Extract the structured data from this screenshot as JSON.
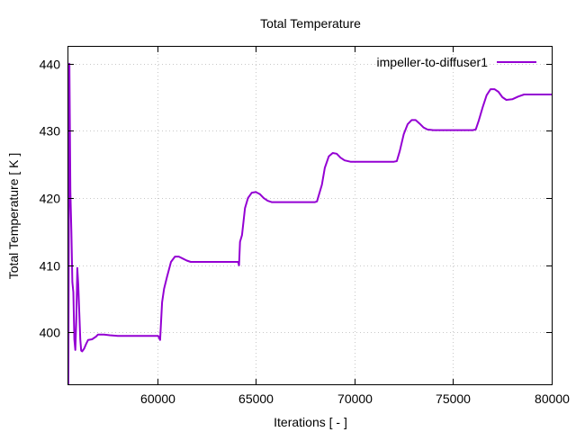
{
  "chart_data": {
    "type": "line",
    "title": "Total Temperature",
    "xlabel": "Iterations [ - ]",
    "ylabel": "Total Temperature [ K ]",
    "xlim": [
      55500,
      80000
    ],
    "ylim": [
      392.3,
      442.5
    ],
    "xticks": [
      60000,
      65000,
      70000,
      75000,
      80000
    ],
    "yticks": [
      400,
      410,
      420,
      430,
      440
    ],
    "grid": true,
    "legend_position": "top-right",
    "series": [
      {
        "name": "impeller-to-diffuser1",
        "color": "#9400d3",
        "points": [
          [
            55500,
            392.3
          ],
          [
            55550,
            440.0
          ],
          [
            55600,
            421.0
          ],
          [
            55650,
            415.0
          ],
          [
            55700,
            407.5
          ],
          [
            55750,
            406.0
          ],
          [
            55800,
            399.0
          ],
          [
            55850,
            397.4
          ],
          [
            55900,
            402.0
          ],
          [
            55950,
            409.6
          ],
          [
            56000,
            407.0
          ],
          [
            56050,
            403.0
          ],
          [
            56100,
            399.0
          ],
          [
            56150,
            397.3
          ],
          [
            56200,
            397.2
          ],
          [
            56300,
            397.6
          ],
          [
            56400,
            398.3
          ],
          [
            56500,
            398.9
          ],
          [
            56700,
            399.0
          ],
          [
            56900,
            399.4
          ],
          [
            57000,
            399.7
          ],
          [
            57300,
            399.7
          ],
          [
            57600,
            399.6
          ],
          [
            58000,
            399.5
          ],
          [
            58500,
            399.5
          ],
          [
            59000,
            399.5
          ],
          [
            59500,
            399.5
          ],
          [
            60000,
            399.5
          ],
          [
            60050,
            399.5
          ],
          [
            60150,
            398.9
          ],
          [
            60250,
            404.5
          ],
          [
            60350,
            406.5
          ],
          [
            60500,
            408.3
          ],
          [
            60700,
            410.5
          ],
          [
            60900,
            411.3
          ],
          [
            61100,
            411.3
          ],
          [
            61300,
            411.0
          ],
          [
            61500,
            410.7
          ],
          [
            61700,
            410.5
          ],
          [
            62000,
            410.5
          ],
          [
            62500,
            410.5
          ],
          [
            63000,
            410.5
          ],
          [
            63500,
            410.5
          ],
          [
            64000,
            410.5
          ],
          [
            64100,
            410.5
          ],
          [
            64150,
            410.0
          ],
          [
            64200,
            413.5
          ],
          [
            64300,
            414.5
          ],
          [
            64450,
            418.5
          ],
          [
            64600,
            420.0
          ],
          [
            64800,
            420.8
          ],
          [
            65000,
            420.9
          ],
          [
            65200,
            420.6
          ],
          [
            65400,
            420.0
          ],
          [
            65600,
            419.6
          ],
          [
            65800,
            419.4
          ],
          [
            66000,
            419.4
          ],
          [
            66500,
            419.4
          ],
          [
            67000,
            419.4
          ],
          [
            67500,
            419.4
          ],
          [
            68000,
            419.4
          ],
          [
            68100,
            419.5
          ],
          [
            68200,
            420.5
          ],
          [
            68350,
            422.0
          ],
          [
            68500,
            424.5
          ],
          [
            68700,
            426.2
          ],
          [
            68900,
            426.7
          ],
          [
            69100,
            426.6
          ],
          [
            69300,
            426.0
          ],
          [
            69500,
            425.6
          ],
          [
            69800,
            425.4
          ],
          [
            70300,
            425.4
          ],
          [
            71000,
            425.4
          ],
          [
            71500,
            425.4
          ],
          [
            72000,
            425.4
          ],
          [
            72150,
            425.5
          ],
          [
            72300,
            427.0
          ],
          [
            72500,
            429.5
          ],
          [
            72700,
            431.0
          ],
          [
            72900,
            431.6
          ],
          [
            73100,
            431.6
          ],
          [
            73300,
            431.1
          ],
          [
            73500,
            430.5
          ],
          [
            73700,
            430.2
          ],
          [
            74000,
            430.1
          ],
          [
            74500,
            430.1
          ],
          [
            75000,
            430.1
          ],
          [
            75500,
            430.1
          ],
          [
            76000,
            430.1
          ],
          [
            76150,
            430.2
          ],
          [
            76300,
            431.5
          ],
          [
            76500,
            433.5
          ],
          [
            76700,
            435.3
          ],
          [
            76900,
            436.2
          ],
          [
            77100,
            436.2
          ],
          [
            77300,
            435.8
          ],
          [
            77500,
            435.0
          ],
          [
            77700,
            434.6
          ],
          [
            78000,
            434.7
          ],
          [
            78300,
            435.1
          ],
          [
            78600,
            435.4
          ],
          [
            79000,
            435.4
          ],
          [
            79500,
            435.4
          ],
          [
            80000,
            435.4
          ]
        ]
      }
    ]
  }
}
